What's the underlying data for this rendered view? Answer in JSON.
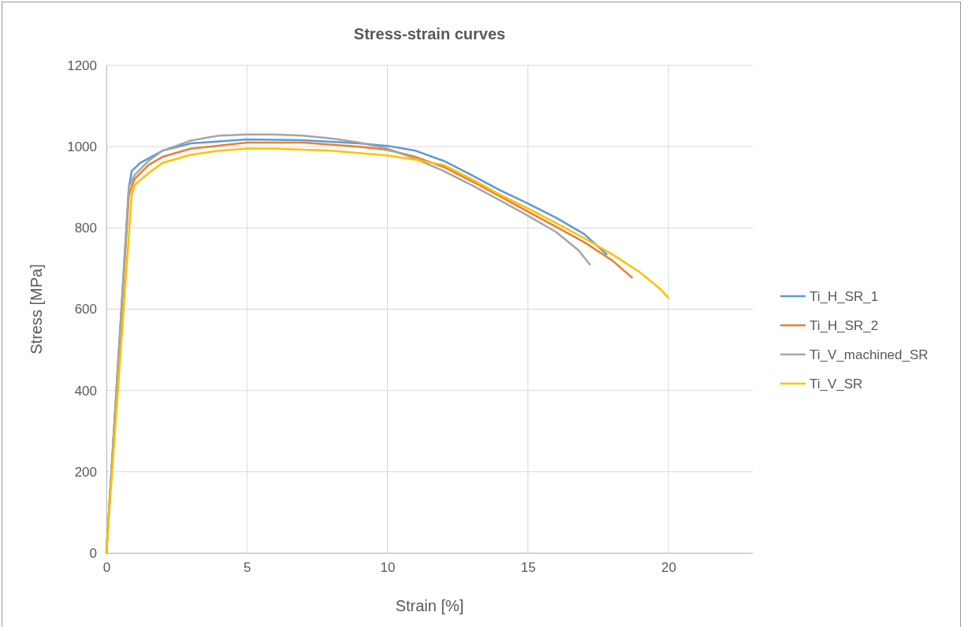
{
  "chart_data": {
    "type": "line",
    "title": "Stress-strain curves",
    "xlabel": "Strain [%]",
    "ylabel": "Stress [MPa]",
    "xlim": [
      0,
      23
    ],
    "xticks": [
      0,
      5,
      10,
      15,
      20
    ],
    "ylim": [
      0,
      1200
    ],
    "yticks": [
      0,
      200,
      400,
      600,
      800,
      1000,
      1200
    ],
    "grid": true,
    "legend": "right",
    "marker": "none",
    "line_style": "solid",
    "series": [
      {
        "name": "Ti_H_SR_1",
        "color": "#5b9bd5",
        "x": [
          0,
          0.8,
          0.9,
          1.2,
          2,
          3,
          5,
          7,
          9,
          10,
          11,
          12,
          13,
          14,
          15,
          16,
          17,
          17.8
        ],
        "values": [
          0,
          900,
          940,
          960,
          990,
          1008,
          1018,
          1016,
          1008,
          1002,
          990,
          965,
          930,
          893,
          860,
          825,
          785,
          735
        ]
      },
      {
        "name": "Ti_H_SR_2",
        "color": "#ed7d31",
        "x": [
          0,
          0.8,
          1,
          1.5,
          2,
          3,
          5,
          7,
          9,
          10,
          11,
          12,
          13,
          14,
          15,
          16,
          17,
          18,
          18.7
        ],
        "values": [
          0,
          880,
          920,
          955,
          975,
          995,
          1010,
          1010,
          1000,
          992,
          975,
          950,
          915,
          878,
          840,
          803,
          765,
          720,
          678
        ]
      },
      {
        "name": "Ti_V_machined_SR",
        "color": "#a5a5a5",
        "x": [
          0,
          0.8,
          1,
          1.5,
          2,
          3,
          4,
          5,
          6,
          7,
          8,
          9,
          10,
          11,
          12,
          13,
          14,
          15,
          16,
          16.8,
          17.2
        ],
        "values": [
          0,
          900,
          930,
          965,
          990,
          1015,
          1027,
          1030,
          1030,
          1027,
          1020,
          1010,
          995,
          970,
          940,
          905,
          868,
          830,
          790,
          745,
          710
        ]
      },
      {
        "name": "Ti_V_SR",
        "color": "#ffc000",
        "x": [
          0,
          0.9,
          1,
          1.5,
          2,
          3,
          4,
          5,
          6,
          8,
          10,
          11,
          12,
          13,
          14,
          15,
          16,
          17,
          18,
          19,
          19.7,
          20
        ],
        "values": [
          0,
          880,
          905,
          935,
          960,
          980,
          990,
          995,
          995,
          990,
          978,
          968,
          955,
          920,
          882,
          848,
          812,
          775,
          735,
          690,
          650,
          628
        ]
      }
    ]
  }
}
